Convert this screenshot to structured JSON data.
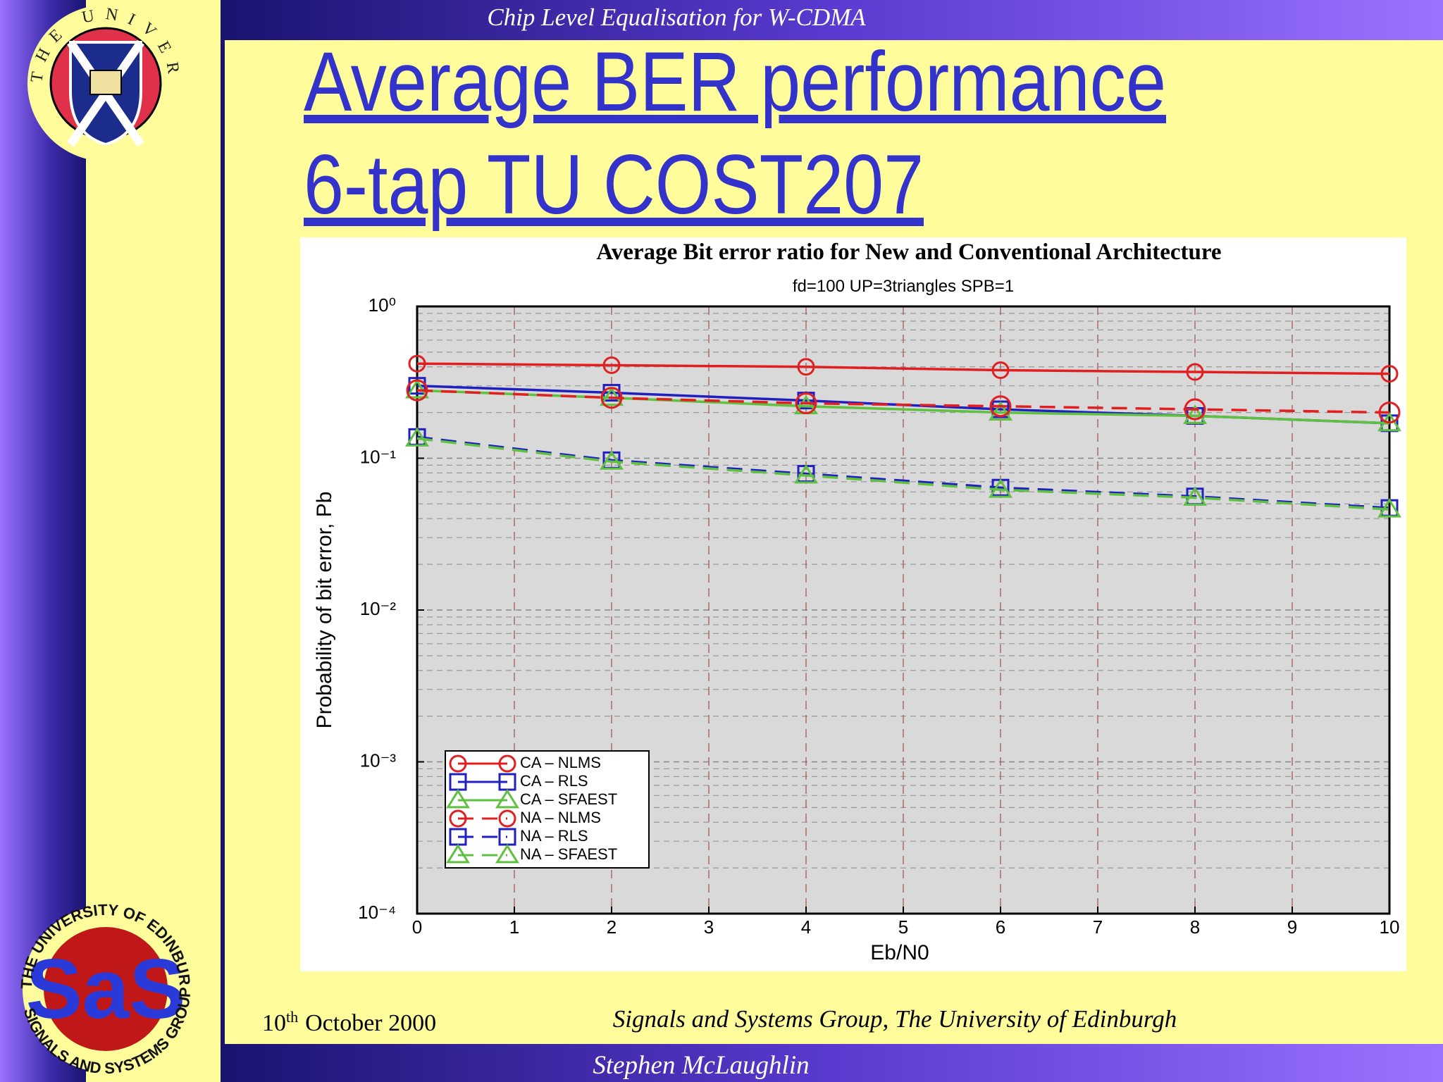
{
  "slide": {
    "header": "Chip Level Equalisation for W-CDMA",
    "title_lines": [
      "Average BER performance",
      "6-tap TU COST207"
    ],
    "footer_date": [
      "10",
      "th",
      "October 2000"
    ],
    "footer_group": "Signals and Systems Group, The University of Edinburgh",
    "presenter": "Stephen McLaughlin",
    "crest_text": "THE UNIVERSITY OF EDINBURGH",
    "sas_logo": {
      "letters": "SaS",
      "top_text": "THE UNIVERSITY OF EDINBURGH",
      "bottom_text": "SIGNALS AND SYSTEMS GROUP"
    }
  },
  "chart_data": {
    "type": "line",
    "title": "Average Bit error ratio for New and Conventional Architecture",
    "subtitle": "fd=100 UP=3triangles SPB=1",
    "x_label": "Eb/N0",
    "y_label": "Probability of bit error, Pb",
    "x": [
      0,
      2,
      4,
      6,
      8,
      10
    ],
    "xlim": [
      0,
      10
    ],
    "xticks": [
      0,
      1,
      2,
      3,
      4,
      5,
      6,
      7,
      8,
      9,
      10
    ],
    "ylim": [
      0.0001,
      1
    ],
    "yscale": "log",
    "yticks": [
      {
        "value": 1,
        "label": "10⁰"
      },
      {
        "value": 0.1,
        "label": "10⁻¹"
      },
      {
        "value": 0.01,
        "label": "10⁻²"
      },
      {
        "value": 0.001,
        "label": "10⁻³"
      },
      {
        "value": 0.0001,
        "label": "10⁻⁴"
      }
    ],
    "grid": true,
    "legend": "lower left",
    "series": [
      {
        "name": "CA – NLMS",
        "color": "#e02020",
        "line_style": "solid",
        "marker": "circle",
        "values": [
          0.42,
          0.41,
          0.4,
          0.38,
          0.37,
          0.36
        ]
      },
      {
        "name": "CA – RLS",
        "color": "#2020c0",
        "line_style": "solid",
        "marker": "square",
        "values": [
          0.3,
          0.27,
          0.24,
          0.21,
          0.19,
          0.17
        ]
      },
      {
        "name": "CA – SFAEST",
        "color": "#60c040",
        "line_style": "solid",
        "marker": "triangle",
        "values": [
          0.28,
          0.25,
          0.22,
          0.2,
          0.19,
          0.17
        ]
      },
      {
        "name": "NA – NLMS",
        "color": "#e02020",
        "line_style": "dashed",
        "marker": "circle",
        "values": [
          0.28,
          0.25,
          0.23,
          0.22,
          0.21,
          0.2
        ]
      },
      {
        "name": "NA – RLS",
        "color": "#2020c0",
        "line_style": "dashed",
        "marker": "square",
        "values": [
          0.138,
          0.097,
          0.079,
          0.064,
          0.056,
          0.047
        ]
      },
      {
        "name": "NA – SFAEST",
        "color": "#60c040",
        "line_style": "dashed",
        "marker": "triangle",
        "values": [
          0.135,
          0.095,
          0.077,
          0.062,
          0.055,
          0.046
        ]
      }
    ]
  }
}
